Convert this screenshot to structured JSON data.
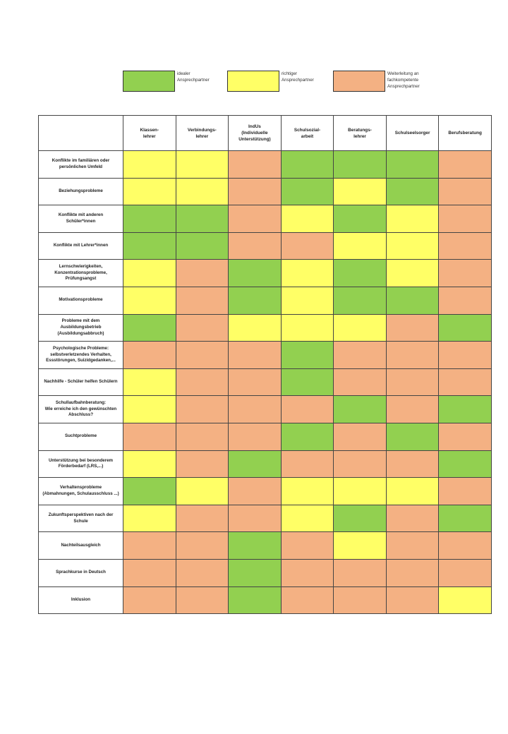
{
  "colors": {
    "green": "#92d050",
    "yellow": "#ffff66",
    "orange": "#f4b183"
  },
  "legend": [
    {
      "color": "green",
      "label": "idealer\nAnsprechpartner"
    },
    {
      "color": "yellow",
      "label": "richtiger\nAnsprechpartner"
    },
    {
      "color": "orange",
      "label": "Weiterleitung an\nfachkompetente\nAnsprechpartner"
    }
  ],
  "table": {
    "columns": [
      "Klassen-\nlehrer",
      "Verbindungs-\nlehrer",
      "IndUs\n(Individuelle\nUnterstützung)",
      "Schulsozial-\narbeit",
      "Beratungs-\nlehrer",
      "Schulseelsorger",
      "Berufsberatung"
    ],
    "rows": [
      {
        "label": "Konflikte im familiären oder\npersönlichen Umfeld",
        "cells": [
          "yellow",
          "yellow",
          "orange",
          "green",
          "green",
          "green",
          "orange"
        ]
      },
      {
        "label": "Beziehungsprobleme",
        "cells": [
          "yellow",
          "yellow",
          "orange",
          "green",
          "yellow",
          "green",
          "orange"
        ]
      },
      {
        "label": "Konflikte mit anderen\nSchüler*innen",
        "cells": [
          "green",
          "green",
          "orange",
          "yellow",
          "green",
          "yellow",
          "orange"
        ]
      },
      {
        "label": "Konflikte mit Lehrer*innen",
        "cells": [
          "green",
          "green",
          "orange",
          "orange",
          "yellow",
          "yellow",
          "orange"
        ]
      },
      {
        "label": "Lernschwierigkeiten,\nKonzentrationsprobleme,\nPrüfungsangst",
        "cells": [
          "yellow",
          "orange",
          "green",
          "yellow",
          "green",
          "yellow",
          "orange"
        ]
      },
      {
        "label": "Motivationsprobleme",
        "cells": [
          "yellow",
          "orange",
          "green",
          "yellow",
          "green",
          "green",
          "orange"
        ]
      },
      {
        "label": "Probleme mit dem\nAusbildungsbetrieb\n(Ausbildungsabbruch)",
        "cells": [
          "green",
          "orange",
          "yellow",
          "yellow",
          "yellow",
          "orange",
          "green"
        ]
      },
      {
        "label": "Psychologische Probleme:\nselbstverletzendes Verhalten,\nEssstörungen, Suizidgedanken,...",
        "cells": [
          "orange",
          "orange",
          "orange",
          "green",
          "orange",
          "orange",
          "orange"
        ]
      },
      {
        "label": "Nachhilfe - Schüler helfen Schülern",
        "cells": [
          "yellow",
          "orange",
          "orange",
          "green",
          "orange",
          "orange",
          "orange"
        ]
      },
      {
        "label": "Schullaufbahnberatung:\nWie erreiche ich den gewünschten\nAbschluss?",
        "cells": [
          "yellow",
          "orange",
          "orange",
          "orange",
          "green",
          "orange",
          "green"
        ]
      },
      {
        "label": "Suchtprobleme",
        "cells": [
          "orange",
          "orange",
          "orange",
          "green",
          "orange",
          "green",
          "orange"
        ]
      },
      {
        "label": "Unterstützung bei besonderem\nFörderbedarf (LRS,...)",
        "cells": [
          "yellow",
          "orange",
          "green",
          "orange",
          "orange",
          "orange",
          "green"
        ]
      },
      {
        "label": "Verhaltensprobleme\n(Abmahnungen, Schulausschluss ...)",
        "cells": [
          "green",
          "yellow",
          "orange",
          "yellow",
          "yellow",
          "yellow",
          "orange"
        ]
      },
      {
        "label": "Zukunftsperspektiven nach der\nSchule",
        "cells": [
          "yellow",
          "orange",
          "orange",
          "yellow",
          "green",
          "orange",
          "green"
        ]
      },
      {
        "label": "Nachteilsausgleich",
        "cells": [
          "orange",
          "orange",
          "green",
          "orange",
          "yellow",
          "orange",
          "orange"
        ]
      },
      {
        "label": "Sprachkurse in Deutsch",
        "cells": [
          "orange",
          "orange",
          "green",
          "orange",
          "orange",
          "orange",
          "orange"
        ]
      },
      {
        "label": "Inklusion",
        "cells": [
          "orange",
          "orange",
          "green",
          "orange",
          "orange",
          "orange",
          "yellow"
        ]
      }
    ]
  }
}
